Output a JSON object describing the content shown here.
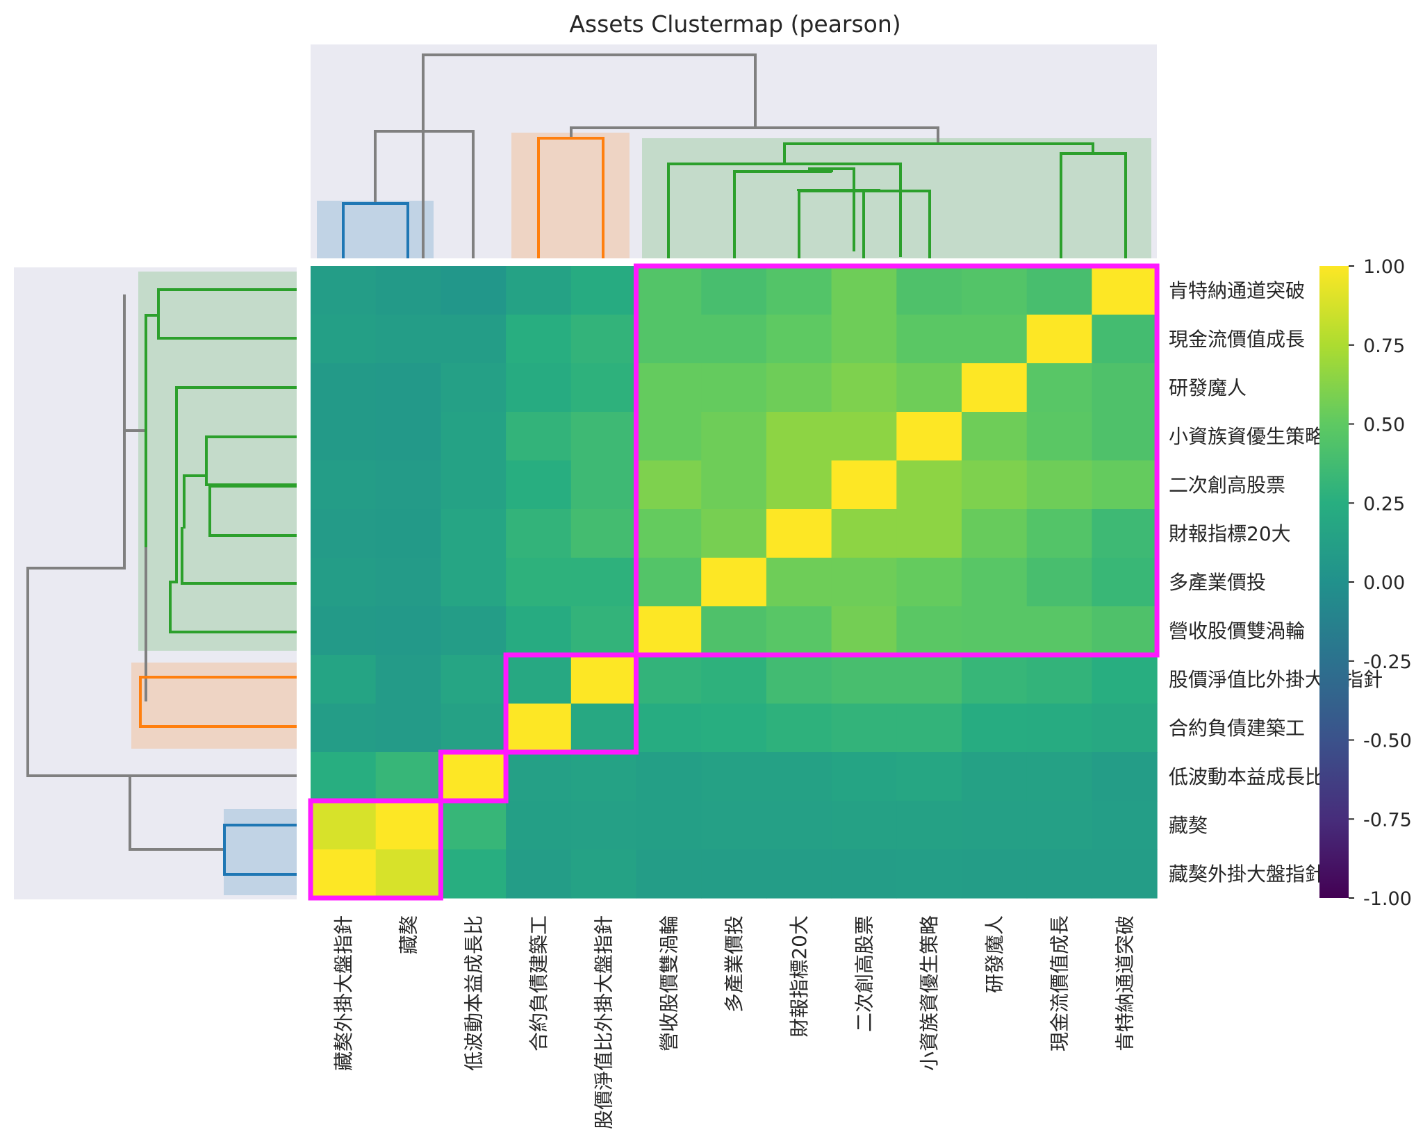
{
  "chart_data": {
    "type": "heatmap",
    "title": "Assets Clustermap (pearson)",
    "colormap": "viridis",
    "vmin": -1.0,
    "vmax": 1.0,
    "colorbar_ticks": [
      "1.00",
      "0.75",
      "0.50",
      "0.25",
      "0.00",
      "-0.25",
      "-0.50",
      "-0.75",
      "-1.00"
    ],
    "colorbar_values": [
      1.0,
      0.75,
      0.5,
      0.25,
      0.0,
      -0.25,
      -0.5,
      -0.75,
      -1.0
    ],
    "column_labels": [
      "藏獒外掛大盤指針",
      "藏獒",
      "低波動本益成長比",
      "合約負債建築工",
      "股價淨值比外掛大盤指針",
      "營收股價雙渦輪",
      "多產業價投",
      "財報指標20大",
      "二次創高股票",
      "小資族資優生策略",
      "研發魔人",
      "現金流價值成長",
      "肯特納通道突破"
    ],
    "row_labels": [
      "肯特納通道突破",
      "現金流價值成長",
      "研發魔人",
      "小資族資優生策略",
      "二次創高股票",
      "財報指標20大",
      "多產業價投",
      "營收股價雙渦輪",
      "股價淨值比外掛大盤指針",
      "合約負債建築工",
      "低波動本益成長比",
      "藏獒",
      "藏獒外掛大盤指針"
    ],
    "values": [
      [
        0.1,
        0.08,
        0.05,
        0.15,
        0.22,
        0.45,
        0.4,
        0.45,
        0.55,
        0.43,
        0.45,
        0.4,
        1.0
      ],
      [
        0.12,
        0.1,
        0.1,
        0.25,
        0.3,
        0.45,
        0.45,
        0.5,
        0.55,
        0.48,
        0.48,
        1.0,
        0.38
      ],
      [
        0.08,
        0.07,
        0.13,
        0.22,
        0.28,
        0.52,
        0.52,
        0.55,
        0.6,
        0.55,
        1.0,
        0.47,
        0.43
      ],
      [
        0.08,
        0.07,
        0.15,
        0.3,
        0.35,
        0.52,
        0.55,
        0.65,
        0.65,
        1.0,
        0.55,
        0.48,
        0.43
      ],
      [
        0.1,
        0.09,
        0.15,
        0.25,
        0.35,
        0.6,
        0.55,
        0.65,
        1.0,
        0.65,
        0.6,
        0.55,
        0.52
      ],
      [
        0.09,
        0.08,
        0.17,
        0.3,
        0.38,
        0.52,
        0.58,
        1.0,
        0.65,
        0.65,
        0.53,
        0.45,
        0.35
      ],
      [
        0.1,
        0.09,
        0.17,
        0.28,
        0.28,
        0.45,
        1.0,
        0.55,
        0.55,
        0.52,
        0.47,
        0.4,
        0.33
      ],
      [
        0.08,
        0.07,
        0.1,
        0.22,
        0.3,
        1.0,
        0.43,
        0.47,
        0.57,
        0.48,
        0.47,
        0.47,
        0.43
      ],
      [
        0.16,
        0.09,
        0.17,
        0.2,
        1.0,
        0.3,
        0.28,
        0.37,
        0.4,
        0.4,
        0.32,
        0.3,
        0.25
      ],
      [
        0.1,
        0.09,
        0.14,
        1.0,
        0.2,
        0.23,
        0.25,
        0.28,
        0.3,
        0.3,
        0.23,
        0.22,
        0.2
      ],
      [
        0.25,
        0.32,
        1.0,
        0.13,
        0.15,
        0.12,
        0.14,
        0.14,
        0.16,
        0.18,
        0.14,
        0.14,
        0.1
      ],
      [
        0.88,
        1.0,
        0.32,
        0.12,
        0.13,
        0.12,
        0.13,
        0.13,
        0.14,
        0.14,
        0.13,
        0.13,
        0.11
      ],
      [
        1.0,
        0.88,
        0.25,
        0.1,
        0.15,
        0.1,
        0.1,
        0.1,
        0.1,
        0.11,
        0.1,
        0.1,
        0.1
      ]
    ],
    "cluster_boxes": [
      {
        "cols": [
          0,
          1
        ],
        "rows": [
          11,
          12
        ]
      },
      {
        "cols": [
          2,
          2
        ],
        "rows": [
          10,
          10
        ]
      },
      {
        "cols": [
          3,
          4
        ],
        "rows": [
          8,
          9
        ]
      },
      {
        "cols": [
          5,
          12
        ],
        "rows": [
          0,
          7
        ]
      }
    ],
    "cluster_highlight_color": "#ff19ff",
    "dendrogram_colors": {
      "link": "#808080",
      "cluster_1": "#1f77b4",
      "cluster_2": "#ff7f0e",
      "cluster_3": "#2ca02c"
    }
  }
}
